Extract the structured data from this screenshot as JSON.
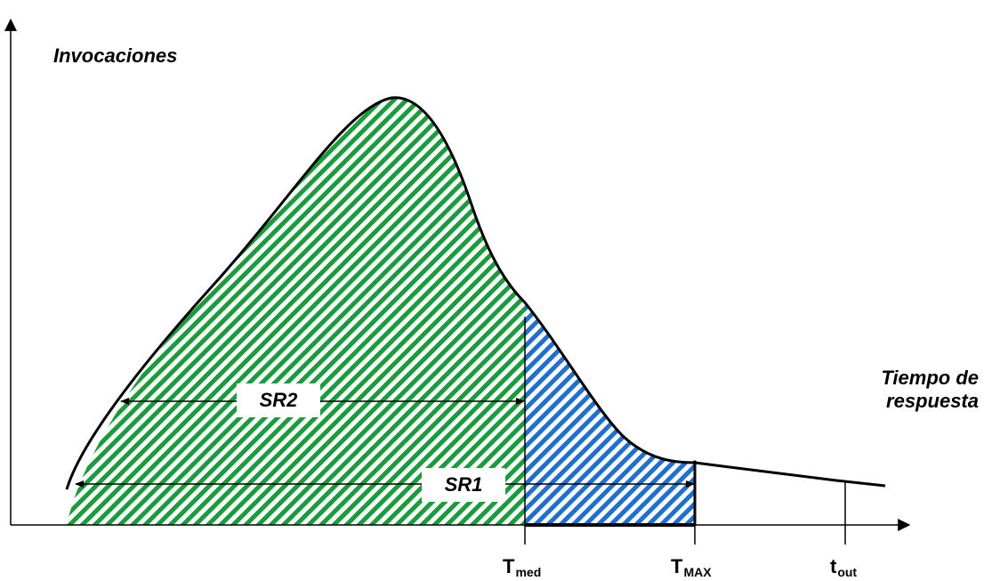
{
  "axes": {
    "y_label": "Invocaciones",
    "x_label_line1": "Tiempo de",
    "x_label_line2": "respuesta"
  },
  "ticks": {
    "t_med": {
      "main": "T",
      "sub": "med"
    },
    "t_max": {
      "main": "T",
      "sub": "MAX"
    },
    "t_out": {
      "main": "t",
      "sub": "out"
    }
  },
  "regions": {
    "sr1": "SR1",
    "sr2": "SR2"
  },
  "colors": {
    "green_hatch": "#1a9c3c",
    "blue_hatch": "#1f6fd0",
    "line": "#000000"
  }
}
